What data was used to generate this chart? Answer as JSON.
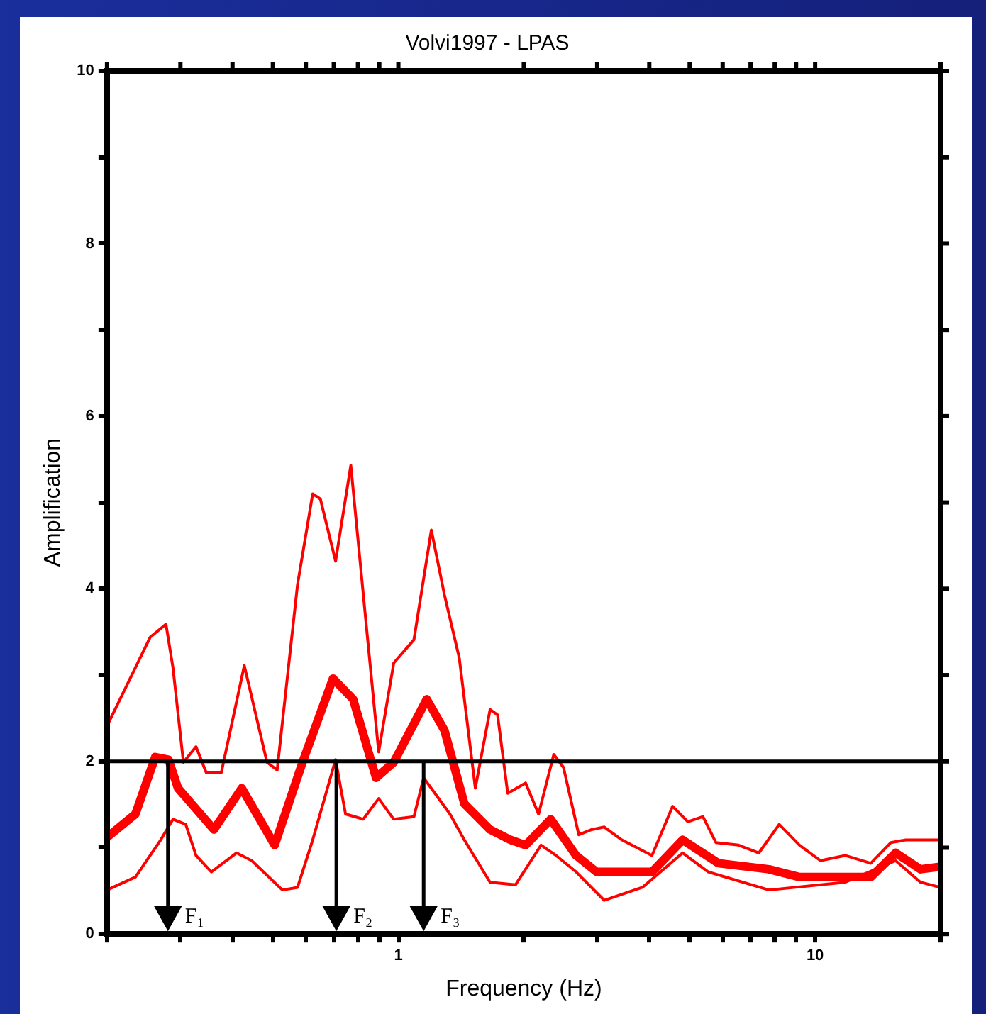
{
  "chart_data": {
    "type": "line",
    "title": "Volvi1997 - LPAS",
    "xlabel": "Frequency (Hz)",
    "ylabel": "Amplification",
    "log": "x",
    "grid": false,
    "legend": false,
    "marker": "none",
    "line_style": "solid",
    "xlim": [
      0.2,
      20
    ],
    "xticks": [
      {
        "value": 0.2,
        "label": null
      },
      {
        "value": 0.3,
        "label": null
      },
      {
        "value": 0.4,
        "label": null
      },
      {
        "value": 0.5,
        "label": null
      },
      {
        "value": 0.6,
        "label": null
      },
      {
        "value": 0.7,
        "label": null
      },
      {
        "value": 0.8,
        "label": null
      },
      {
        "value": 0.9,
        "label": null
      },
      1,
      {
        "value": 2,
        "label": null
      },
      {
        "value": 3,
        "label": null
      },
      {
        "value": 4,
        "label": null
      },
      {
        "value": 5,
        "label": null
      },
      {
        "value": 6,
        "label": null
      },
      {
        "value": 7,
        "label": null
      },
      {
        "value": 8,
        "label": null
      },
      {
        "value": 9,
        "label": null
      },
      10,
      {
        "value": 20,
        "label": null
      }
    ],
    "ylim": [
      0,
      10
    ],
    "yticks": [
      0,
      {
        "value": 1,
        "label": null
      },
      2,
      {
        "value": 3,
        "label": null
      },
      4,
      {
        "value": 5,
        "label": null
      },
      6,
      {
        "value": 7,
        "label": null
      },
      8,
      {
        "value": 9,
        "label": null
      },
      10
    ],
    "series": [
      {
        "color": "#ff0000",
        "x": [
          0.2,
          0.254,
          0.277,
          0.288,
          0.305,
          0.327,
          0.346,
          0.376,
          0.427,
          0.484,
          0.512,
          0.573,
          0.623,
          0.65,
          0.707,
          0.769,
          0.836,
          0.897,
          0.975,
          1.09,
          1.2,
          1.29,
          1.4,
          1.53,
          1.66,
          1.73,
          1.83,
          2.02,
          2.17,
          2.36,
          2.49,
          2.71,
          2.91,
          3.12,
          3.44,
          4.06,
          4.55,
          4.95,
          5.38,
          5.78,
          6.55,
          7.33,
          8.2,
          9.17,
          10.3,
          11.8,
          13.6,
          15.2,
          16.5,
          20
        ],
        "values": [
          2.41,
          3.44,
          3.59,
          3.08,
          1.99,
          2.17,
          1.87,
          1.87,
          3.11,
          1.99,
          1.9,
          4.05,
          5.1,
          5.04,
          4.32,
          5.43,
          3.62,
          2.11,
          3.14,
          3.41,
          4.68,
          3.93,
          3.2,
          1.69,
          2.6,
          2.54,
          1.63,
          1.75,
          1.39,
          2.08,
          1.93,
          1.15,
          1.21,
          1.24,
          1.09,
          0.91,
          1.48,
          1.3,
          1.36,
          1.06,
          1.03,
          0.94,
          1.27,
          1.03,
          0.85,
          0.91,
          0.82,
          1.06,
          1.09,
          1.09
        ]
      },
      {
        "color": "#ff0000",
        "x": [
          0.2,
          0.234,
          0.261,
          0.281,
          0.296,
          0.361,
          0.421,
          0.505,
          0.589,
          0.697,
          0.779,
          0.884,
          0.975,
          1.17,
          1.29,
          1.44,
          1.66,
          1.86,
          2.02,
          2.32,
          2.67,
          2.99,
          4.06,
          4.81,
          5.86,
          7.75,
          9.17,
          13.6,
          15.6,
          17.9,
          20
        ],
        "values": [
          1.12,
          1.39,
          2.05,
          2.02,
          1.69,
          1.21,
          1.69,
          1.03,
          1.99,
          2.96,
          2.72,
          1.81,
          1.99,
          2.72,
          2.36,
          1.51,
          1.21,
          1.09,
          1.03,
          1.33,
          0.91,
          0.72,
          0.72,
          1.09,
          0.82,
          0.75,
          0.66,
          0.66,
          0.94,
          0.75,
          0.78
        ]
      },
      {
        "color": "#ff0000",
        "x": [
          0.2,
          0.234,
          0.269,
          0.288,
          0.309,
          0.327,
          0.356,
          0.409,
          0.445,
          0.527,
          0.573,
          0.623,
          0.707,
          0.747,
          0.824,
          0.897,
          0.975,
          1.09,
          1.15,
          1.33,
          1.44,
          1.66,
          1.91,
          2.2,
          2.39,
          2.67,
          3.12,
          3.85,
          4.81,
          5.54,
          7.75,
          11.8,
          15.6,
          17.9,
          20
        ],
        "values": [
          0.51,
          0.66,
          1.09,
          1.33,
          1.27,
          0.91,
          0.72,
          0.94,
          0.85,
          0.51,
          0.54,
          1.09,
          2.02,
          1.39,
          1.33,
          1.57,
          1.33,
          1.36,
          1.81,
          1.39,
          1.09,
          0.6,
          0.57,
          1.03,
          0.91,
          0.72,
          0.39,
          0.54,
          0.94,
          0.72,
          0.51,
          0.6,
          0.85,
          0.6,
          0.54
        ]
      }
    ],
    "ref_lines": [
      {
        "axis": "y",
        "value": 2,
        "color": "#000000",
        "line_style": "solid"
      }
    ],
    "annotations": [
      {
        "text": "F₁",
        "x": 0.28,
        "y": 0.2
      },
      {
        "text": "F₂",
        "x": 0.71,
        "y": 0.2
      },
      {
        "text": "F₃",
        "x": 1.15,
        "y": 0.2
      }
    ]
  }
}
